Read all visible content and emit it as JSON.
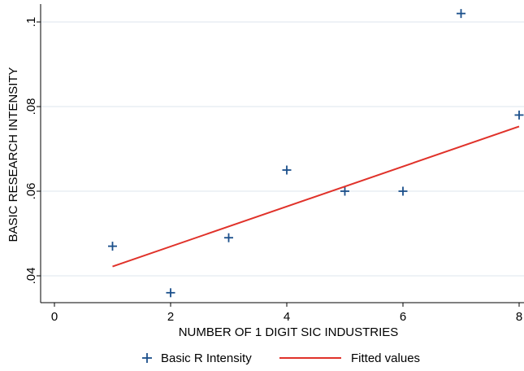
{
  "chart_data": {
    "type": "scatter",
    "title": "",
    "xlabel": "NUMBER OF 1 DIGIT SIC INDUSTRIES",
    "ylabel": "BASIC RESEARCH INTENSITY",
    "xlim": [
      0,
      8
    ],
    "ylim": [
      0.035,
      0.102
    ],
    "x_ticks": [
      {
        "value": 0,
        "label": "0"
      },
      {
        "value": 2,
        "label": "2"
      },
      {
        "value": 4,
        "label": "4"
      },
      {
        "value": 6,
        "label": "6"
      },
      {
        "value": 8,
        "label": "8"
      }
    ],
    "y_ticks": [
      {
        "value": 0.04,
        "label": ".04"
      },
      {
        "value": 0.06,
        "label": ".06"
      },
      {
        "value": 0.08,
        "label": ".08"
      },
      {
        "value": 0.1,
        "label": ".1"
      }
    ],
    "grid": true,
    "legend_position": "bottom",
    "series": [
      {
        "name": "Basic R Intensity",
        "kind": "scatter",
        "marker": "plus",
        "color": "#1a4f8b",
        "points": [
          {
            "x": 1,
            "y": 0.047
          },
          {
            "x": 2,
            "y": 0.036
          },
          {
            "x": 3,
            "y": 0.049
          },
          {
            "x": 4,
            "y": 0.065
          },
          {
            "x": 5,
            "y": 0.06
          },
          {
            "x": 6,
            "y": 0.06
          },
          {
            "x": 7,
            "y": 0.102
          },
          {
            "x": 8,
            "y": 0.078
          }
        ]
      },
      {
        "name": "Fitted values",
        "kind": "line",
        "color": "#e0322a",
        "points": [
          {
            "x": 1,
            "y": 0.0422
          },
          {
            "x": 8,
            "y": 0.0753
          }
        ]
      }
    ]
  }
}
